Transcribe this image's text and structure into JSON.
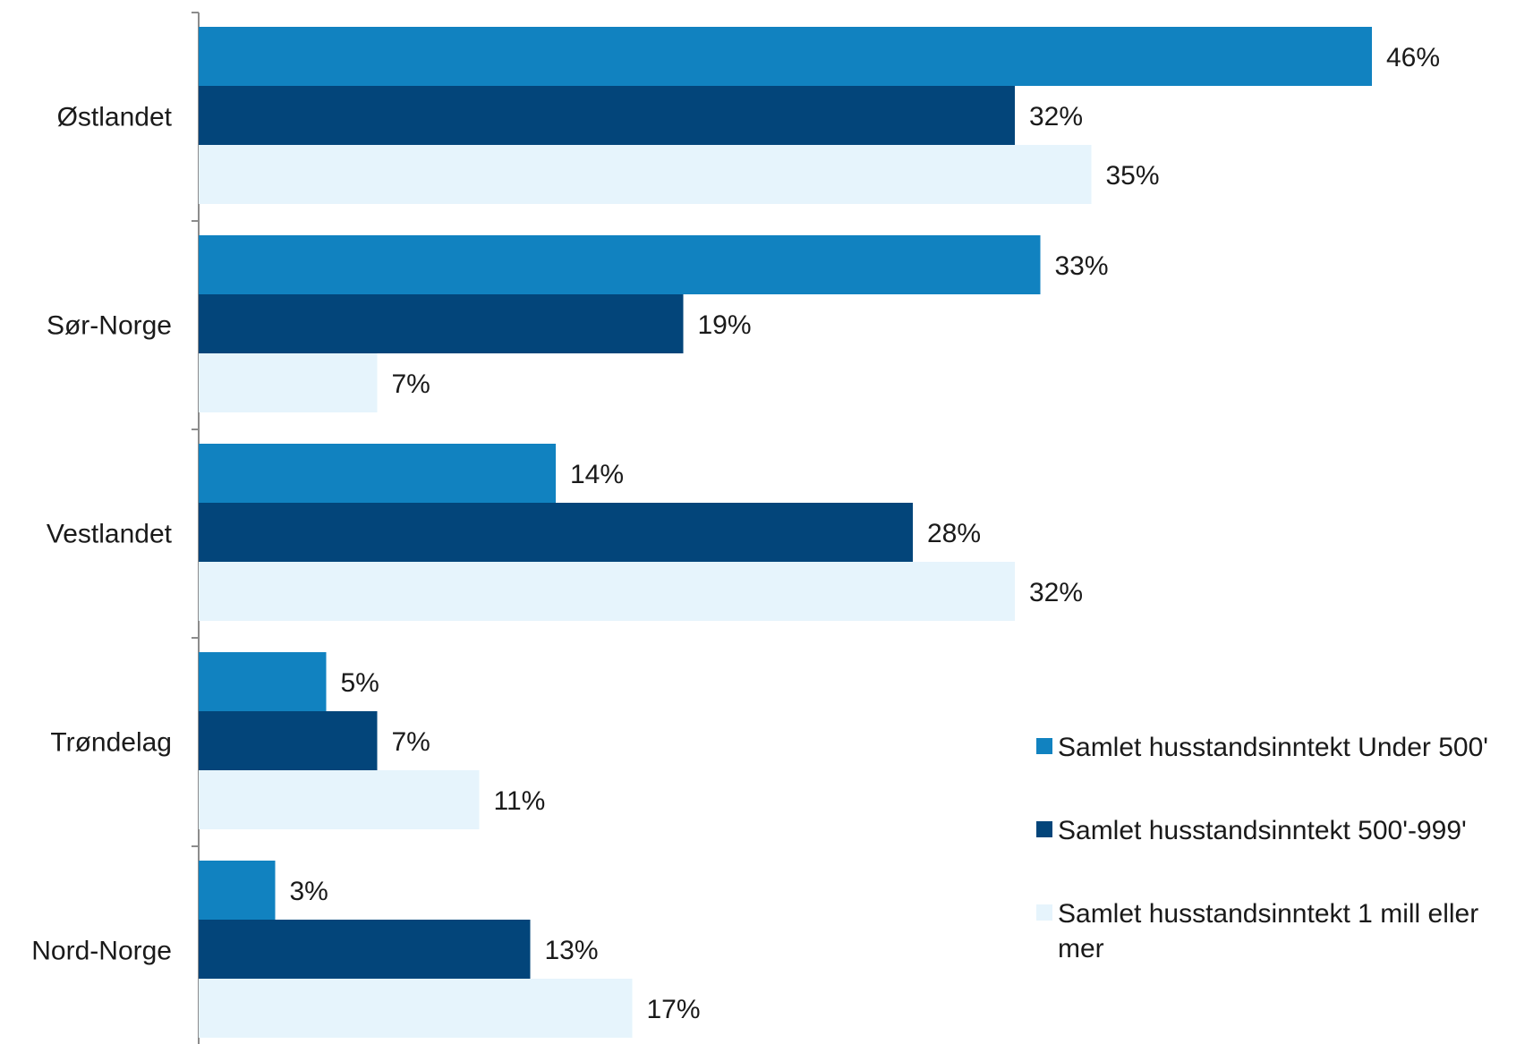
{
  "chart_data": {
    "type": "bar",
    "orientation": "horizontal",
    "categories": [
      "Østlandet",
      "Sør-Norge",
      "Vestlandet",
      "Trøndelag",
      "Nord-Norge"
    ],
    "series": [
      {
        "name": "Samlet husstandsinntekt Under 500'",
        "color": "#1182c0",
        "values": [
          46,
          33,
          14,
          5,
          3
        ]
      },
      {
        "name": "Samlet husstandsinntekt 500'-999'",
        "color": "#03457a",
        "values": [
          32,
          19,
          28,
          7,
          13
        ]
      },
      {
        "name": "Samlet husstandsinntekt 1 mill eller mer",
        "color": "#e6f4fc",
        "values": [
          35,
          7,
          32,
          11,
          17
        ]
      }
    ],
    "value_suffix": "%",
    "xlim": [
      0,
      50
    ],
    "grid": false,
    "legend_position": "right"
  }
}
